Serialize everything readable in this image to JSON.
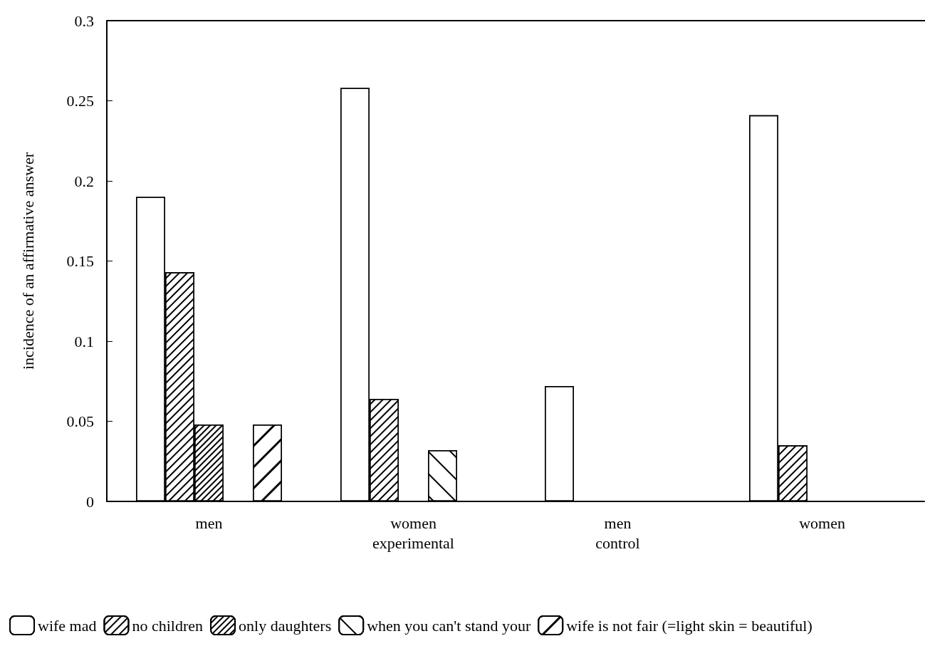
{
  "chart_data": {
    "type": "bar",
    "categories": [
      "men",
      "women\nexperimental",
      "men\ncontrol",
      "women"
    ],
    "ylabel": "incidence of an affirmative answer",
    "ylim": [
      0,
      0.3
    ],
    "yticks": [
      0,
      0.05,
      0.1,
      0.15,
      0.2,
      0.25,
      0.3
    ],
    "grid": false,
    "legend": "bottom",
    "series": [
      {
        "name": "wife mad",
        "color": "#000000",
        "values": [
          0.19,
          0.258,
          0.072,
          0.241
        ]
      },
      {
        "name": "no children",
        "color": "#000000",
        "values": [
          0.143,
          0.064,
          0,
          0.035
        ]
      },
      {
        "name": "only daughters",
        "color": "#000000",
        "values": [
          0.048,
          0,
          0,
          0
        ]
      },
      {
        "name": "when you can't stand your",
        "color": "#000000",
        "values": [
          0,
          0.032,
          0,
          0
        ]
      },
      {
        "name": "wife is not fair (=light skin = beautiful)",
        "color": "#000000",
        "values": [
          0.048,
          0,
          0,
          0
        ]
      }
    ]
  }
}
